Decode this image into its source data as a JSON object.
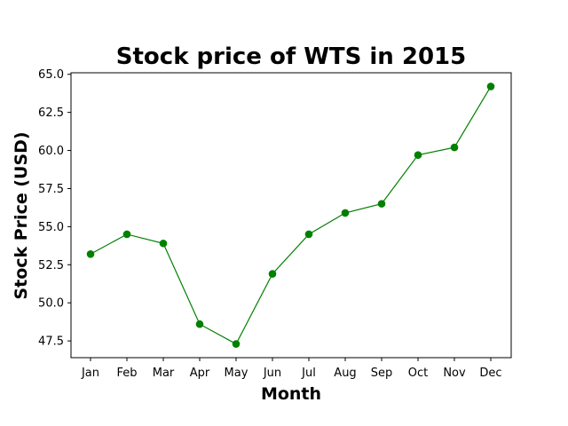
{
  "chart_data": {
    "type": "line",
    "title": "Stock price of WTS in 2015",
    "xlabel": "Month",
    "ylabel": "Stock Price (USD)",
    "categories": [
      "Jan",
      "Feb",
      "Mar",
      "Apr",
      "May",
      "Jun",
      "Jul",
      "Aug",
      "Sep",
      "Oct",
      "Nov",
      "Dec"
    ],
    "values": [
      53.2,
      54.5,
      53.9,
      48.6,
      47.3,
      51.9,
      54.5,
      55.9,
      56.5,
      59.7,
      60.2,
      64.2
    ],
    "yticks": [
      "47.5",
      "50.0",
      "52.5",
      "55.0",
      "57.5",
      "60.0",
      "62.5",
      "65.0"
    ],
    "ylim": [
      46.4,
      65.1
    ],
    "line_color": "#008000",
    "marker": "circle",
    "grid": false
  }
}
